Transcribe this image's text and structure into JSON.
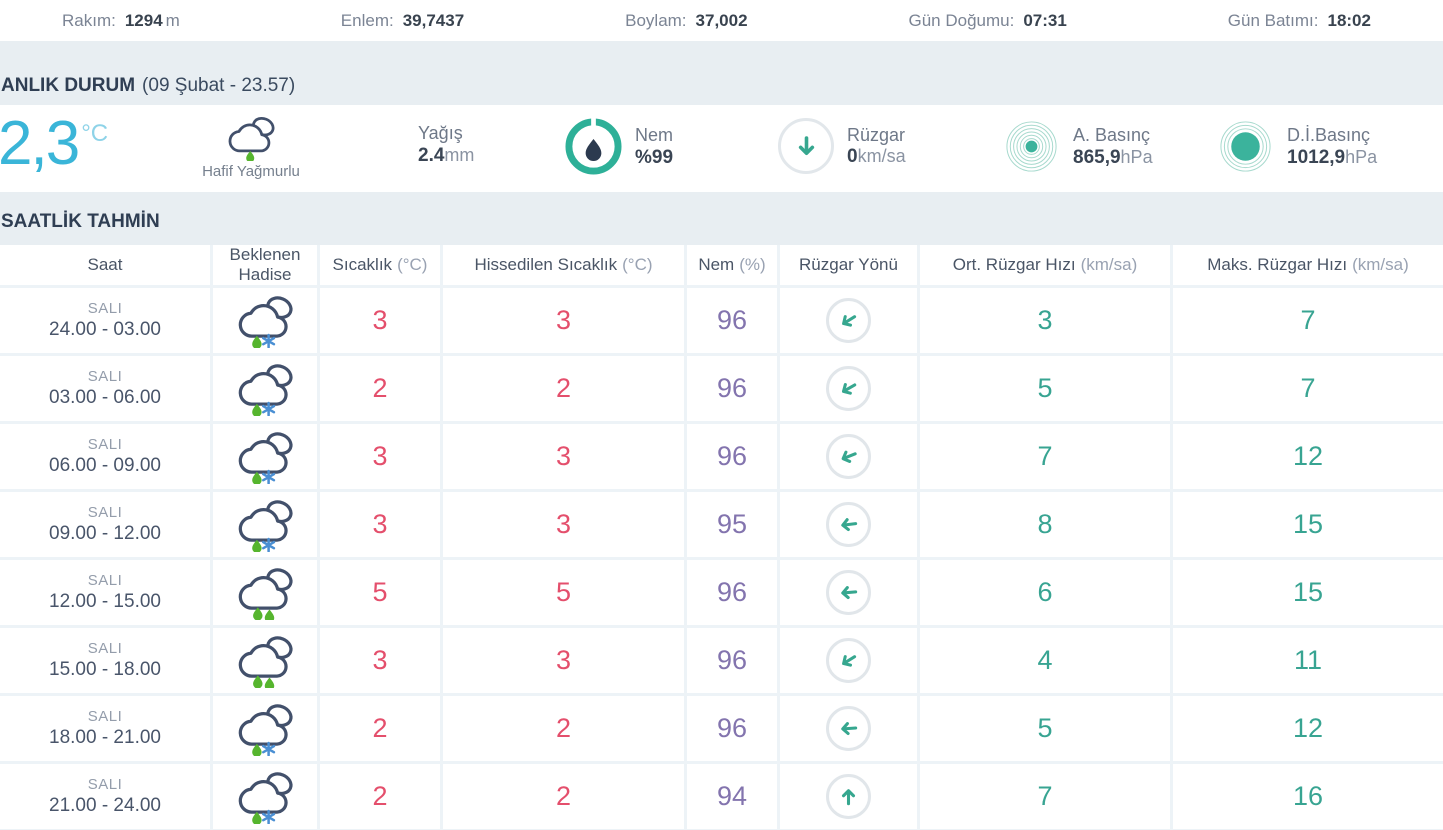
{
  "topbar": {
    "items": [
      {
        "label": "Rakım:",
        "value": "1294",
        "unit": "m"
      },
      {
        "label": "Enlem:",
        "value": "39,7437",
        "unit": ""
      },
      {
        "label": "Boylam:",
        "value": "37,002",
        "unit": ""
      },
      {
        "label": "Gün Doğumu:",
        "value": "07:31",
        "unit": ""
      },
      {
        "label": "Gün Batımı:",
        "value": "18:02",
        "unit": ""
      }
    ]
  },
  "current": {
    "section_title": "ANLIK DURUM",
    "section_time": "(09 Şubat - 23.57)",
    "temperature": "2,3",
    "temperature_unit": "°C",
    "condition_icon": "cloud-light-rain-icon",
    "condition_label": "Hafif Yağmurlu",
    "precipitation": {
      "label": "Yağış",
      "value": "2.4",
      "unit": "mm"
    },
    "metrics": [
      {
        "icon": "humidity-gauge-icon",
        "label": "Nem",
        "value": "%99",
        "unit": ""
      },
      {
        "icon": "wind-gauge-icon",
        "label": "Rüzgar",
        "value": "0",
        "unit": "km/sa"
      },
      {
        "icon": "station-pressure-icon",
        "label": "A. Basınç",
        "value": "865,9",
        "unit": "hPa"
      },
      {
        "icon": "sea-level-pressure-icon",
        "label": "D.İ.Basınç",
        "value": "1012,9",
        "unit": "hPa"
      }
    ]
  },
  "hourly": {
    "section_title": "SAATLİK TAHMİN",
    "columns": [
      {
        "label": "Saat",
        "unit": ""
      },
      {
        "label": "Beklenen Hadise",
        "unit": ""
      },
      {
        "label": "Sıcaklık",
        "unit": "(°C)"
      },
      {
        "label": "Hissedilen Sıcaklık",
        "unit": "(°C)"
      },
      {
        "label": "Nem",
        "unit": "(%)"
      },
      {
        "label": "Rüzgar Yönü",
        "unit": ""
      },
      {
        "label": "Ort. Rüzgar Hızı",
        "unit": "(km/sa)"
      },
      {
        "label": "Maks. Rüzgar Hızı",
        "unit": "(km/sa)"
      }
    ],
    "rows": [
      {
        "day": "SALI",
        "time": "24.00 - 03.00",
        "icon": "cloud-sleet-icon",
        "temp": "3",
        "feels": "3",
        "humidity": "96",
        "wind_dir_deg": 238,
        "wind_avg": "3",
        "wind_max": "7"
      },
      {
        "day": "SALI",
        "time": "03.00 - 06.00",
        "icon": "cloud-sleet-icon",
        "temp": "2",
        "feels": "2",
        "humidity": "96",
        "wind_dir_deg": 240,
        "wind_avg": "5",
        "wind_max": "7"
      },
      {
        "day": "SALI",
        "time": "06.00 - 09.00",
        "icon": "cloud-sleet-icon",
        "temp": "3",
        "feels": "3",
        "humidity": "96",
        "wind_dir_deg": 248,
        "wind_avg": "7",
        "wind_max": "12"
      },
      {
        "day": "SALI",
        "time": "09.00 - 12.00",
        "icon": "cloud-sleet-icon",
        "temp": "3",
        "feels": "3",
        "humidity": "95",
        "wind_dir_deg": 263,
        "wind_avg": "8",
        "wind_max": "15"
      },
      {
        "day": "SALI",
        "time": "12.00 - 15.00",
        "icon": "cloud-rain-icon",
        "temp": "5",
        "feels": "5",
        "humidity": "96",
        "wind_dir_deg": 265,
        "wind_avg": "6",
        "wind_max": "15"
      },
      {
        "day": "SALI",
        "time": "15.00 - 18.00",
        "icon": "cloud-rain-icon",
        "temp": "3",
        "feels": "3",
        "humidity": "96",
        "wind_dir_deg": 238,
        "wind_avg": "4",
        "wind_max": "11"
      },
      {
        "day": "SALI",
        "time": "18.00 - 21.00",
        "icon": "cloud-sleet-icon",
        "temp": "2",
        "feels": "2",
        "humidity": "96",
        "wind_dir_deg": 266,
        "wind_avg": "5",
        "wind_max": "12"
      },
      {
        "day": "SALI",
        "time": "21.00 - 24.00",
        "icon": "cloud-sleet-icon",
        "temp": "2",
        "feels": "2",
        "humidity": "94",
        "wind_dir_deg": 0,
        "wind_avg": "7",
        "wind_max": "16"
      }
    ]
  },
  "colors": {
    "accent_cyan": "#3ab5d8",
    "teal": "#2eb098",
    "wind_arrow_teal": "#36a78f",
    "temperature_pink": "#e44f6c",
    "humidity_purple": "#8374ae",
    "speed_teal": "#38a492",
    "band_background": "#e8eef2",
    "rain_drop_green": "#56b52e",
    "snowflake_blue": "#4a8fd3",
    "cloud_outline": "#42506b"
  }
}
